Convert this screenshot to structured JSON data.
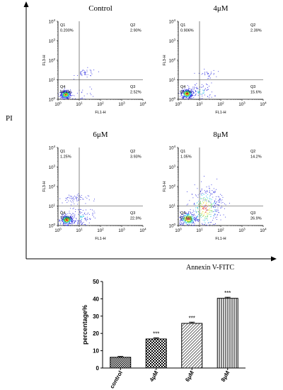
{
  "figure": {
    "y_axis_label": "PI",
    "x_axis_label": "Annexin V-FITC"
  },
  "chart_data": [
    {
      "type": "scatter",
      "title": "Control",
      "xlabel": "FL1-H",
      "ylabel": "FL3-H",
      "axis_scale": "log",
      "xlim": [
        1,
        10000
      ],
      "ylim": [
        1,
        10000
      ],
      "tick_labels": [
        "10^0",
        "10^1",
        "10^2",
        "10^3",
        "10^4"
      ],
      "quadrant_gate": [
        10,
        10
      ],
      "quadrants": [
        {
          "name": "Q1",
          "percent": "0.200%"
        },
        {
          "name": "Q2",
          "percent": "2.90%"
        },
        {
          "name": "Q3",
          "percent": "2.52%"
        },
        {
          "name": "Q4",
          "percent": "94.4%"
        }
      ]
    },
    {
      "type": "scatter",
      "title": "4μM",
      "xlabel": "FL1-H",
      "ylabel": "FL3-H",
      "axis_scale": "log",
      "xlim": [
        1,
        10000
      ],
      "ylim": [
        1,
        10000
      ],
      "tick_labels": [
        "10^0",
        "10^1",
        "10^2",
        "10^3",
        "10^4"
      ],
      "quadrant_gate": [
        10,
        10
      ],
      "quadrants": [
        {
          "name": "Q1",
          "percent": "0.906%"
        },
        {
          "name": "Q2",
          "percent": "2.39%"
        },
        {
          "name": "Q3",
          "percent": "15.6%"
        },
        {
          "name": "Q4",
          "percent": "81.1%"
        }
      ]
    },
    {
      "type": "scatter",
      "title": "6μM",
      "xlabel": "FL1-H",
      "ylabel": "FL3-H",
      "axis_scale": "log",
      "xlim": [
        1,
        10000
      ],
      "ylim": [
        1,
        10000
      ],
      "tick_labels": [
        "10^0",
        "10^1",
        "10^2",
        "10^3",
        "10^4"
      ],
      "quadrant_gate": [
        10,
        10
      ],
      "quadrants": [
        {
          "name": "Q1",
          "percent": "1.25%"
        },
        {
          "name": "Q2",
          "percent": "3.93%"
        },
        {
          "name": "Q3",
          "percent": "22.9%"
        },
        {
          "name": "Q4",
          "percent": "72.0%"
        }
      ]
    },
    {
      "type": "scatter",
      "title": "8μM",
      "xlabel": "FL1-H",
      "ylabel": "FL3-H",
      "axis_scale": "log",
      "xlim": [
        1,
        10000
      ],
      "ylim": [
        1,
        10000
      ],
      "tick_labels": [
        "10^0",
        "10^1",
        "10^2",
        "10^3",
        "10^4"
      ],
      "quadrant_gate": [
        10,
        10
      ],
      "quadrants": [
        {
          "name": "Q1",
          "percent": "1.05%"
        },
        {
          "name": "Q2",
          "percent": "14.2%"
        },
        {
          "name": "Q3",
          "percent": "26.9%"
        },
        {
          "name": "Q4",
          "percent": "57.8%"
        }
      ]
    },
    {
      "type": "bar",
      "categories": [
        "control",
        "4μM",
        "6μM",
        "8μM"
      ],
      "values": [
        6.2,
        16.8,
        25.8,
        40.3
      ],
      "errors": [
        0.5,
        0.6,
        0.7,
        0.6
      ],
      "significance": [
        "",
        "***",
        "***",
        "***"
      ],
      "bar_patterns": [
        "checker-small",
        "checker-large",
        "diagonal-hatch",
        "vertical-stripes"
      ],
      "ylabel": "percentage%",
      "xlabel": "",
      "ylim": [
        0,
        50
      ],
      "yticks": [
        0,
        10,
        20,
        30,
        40,
        50
      ],
      "grid": false
    }
  ],
  "colors": {
    "axis": "#000000",
    "gate_line": "#333333",
    "dot_blue": "#2a2adf",
    "dot_cyan": "#33c8e8",
    "dot_green": "#44cc44",
    "dot_yellow": "#e8e020",
    "dot_red": "#e83020"
  }
}
